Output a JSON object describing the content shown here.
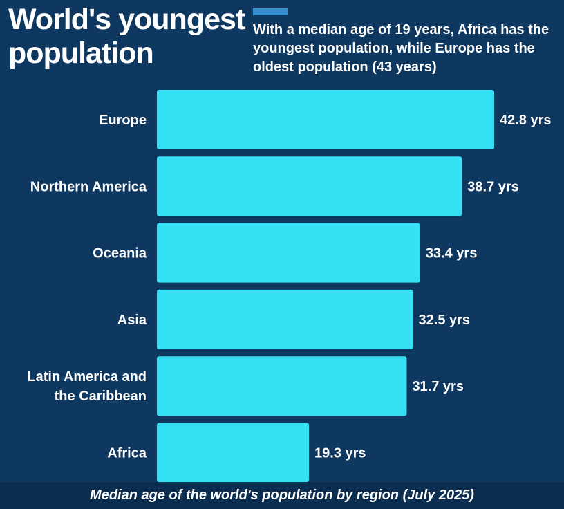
{
  "header": {
    "title_line1": "World's youngest",
    "title_line2": "population",
    "subtitle": "With a median age of 19 years, Africa has the youngest population, while Europe has the oldest population (43 years)"
  },
  "footer": {
    "caption": "Median age of the world's population by region (July 2025)"
  },
  "colors": {
    "background": "#0f3861",
    "bar": "#35e0f4",
    "accent": "#3a8fd1",
    "footer_band": "#0b2d50",
    "text": "#ffffff"
  },
  "chart_data": {
    "type": "bar",
    "orientation": "horizontal",
    "title": "World's youngest population",
    "subtitle": "With a median age of 19 years, Africa has the youngest population, while Europe has the oldest population (43 years)",
    "caption": "Median age of the world's population by region (July 2025)",
    "categories": [
      [
        "Europe"
      ],
      [
        "Northern America"
      ],
      [
        "Oceania"
      ],
      [
        "Asia"
      ],
      [
        "Latin America and",
        "the Caribbean"
      ],
      [
        "Africa"
      ]
    ],
    "values": [
      42.8,
      38.7,
      33.4,
      32.5,
      31.7,
      19.3
    ],
    "value_labels": [
      "42.8 yrs",
      "38.7 yrs",
      "33.4 yrs",
      "32.5 yrs",
      "31.7 yrs",
      "19.3 yrs"
    ],
    "unit": "yrs",
    "xlim": [
      0,
      42.8
    ],
    "grid": false,
    "legend": "none"
  }
}
